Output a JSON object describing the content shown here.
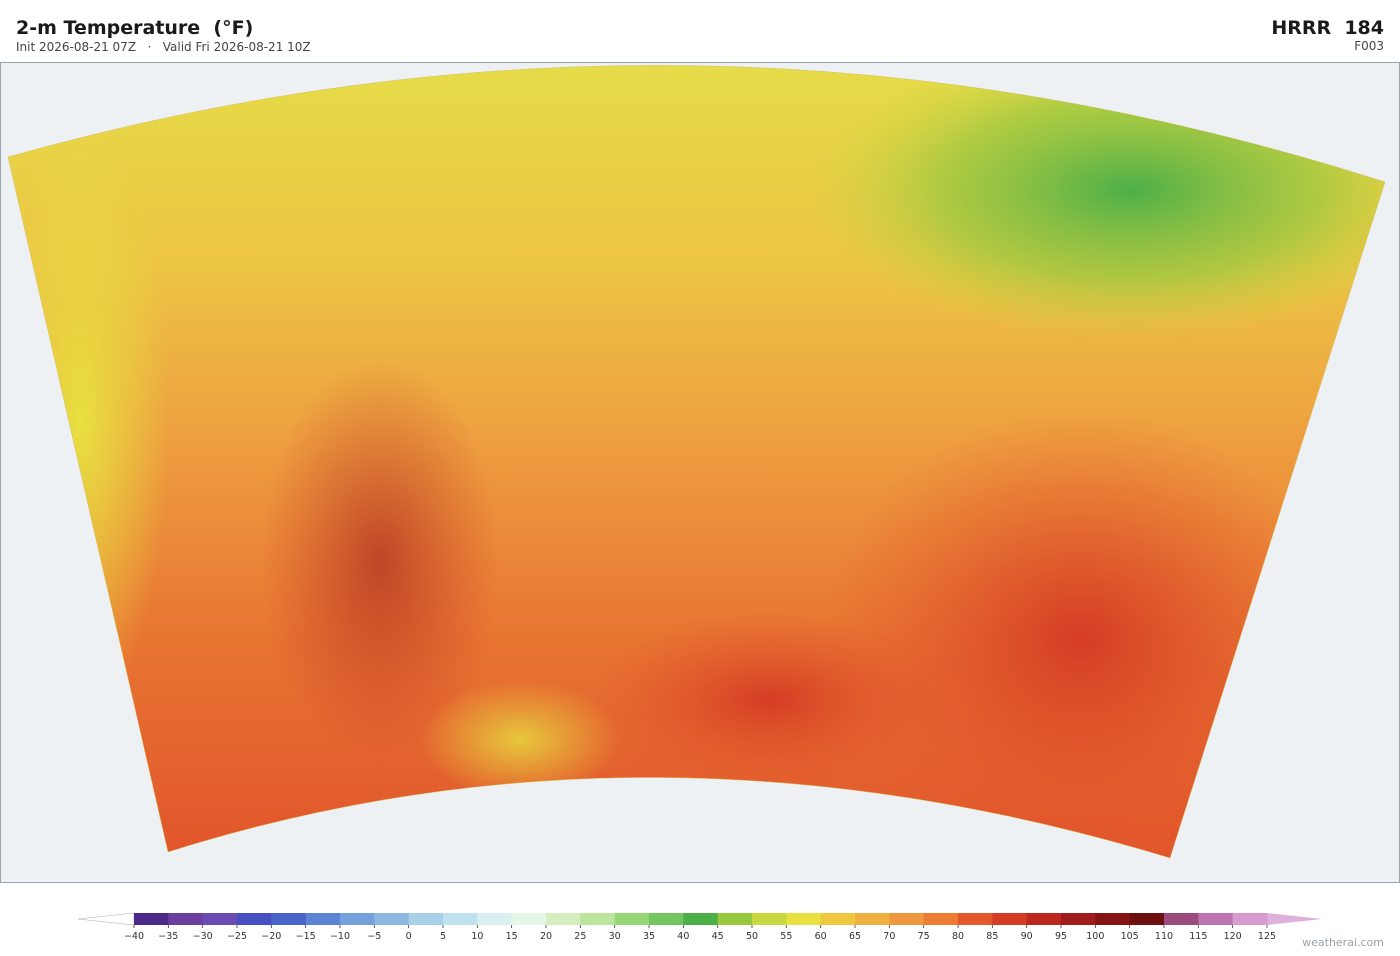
{
  "header": {
    "title": "2-m Temperature  (°F)",
    "subtitle": "Init 2026-08-21 07Z   ·   Valid Fri 2026-08-21 10Z",
    "model": "HRRR  184",
    "forecast_hour": "F003"
  },
  "colorbar": {
    "ticks": [
      {
        "value": -40,
        "label": "−40"
      },
      {
        "value": -35,
        "label": "−35"
      },
      {
        "value": -30,
        "label": "−30"
      },
      {
        "value": -25,
        "label": "−25"
      },
      {
        "value": -20,
        "label": "−20"
      },
      {
        "value": -15,
        "label": "−15"
      },
      {
        "value": -10,
        "label": "−10"
      },
      {
        "value": -5,
        "label": "−5"
      },
      0,
      5,
      10,
      15,
      20,
      25,
      30,
      35,
      40,
      45,
      50,
      55,
      60,
      65,
      70,
      75,
      80,
      85,
      90,
      95,
      100,
      105,
      110,
      115,
      120,
      125
    ],
    "colors": [
      "#4b2a8a",
      "#6a3fa0",
      "#6b4cb4",
      "#4650c0",
      "#4a63c8",
      "#5b84d4",
      "#74a0dc",
      "#8fb8e0",
      "#a8d0e8",
      "#c0e2ef",
      "#d8f0f0",
      "#e6f6e6",
      "#d4eec0",
      "#bce49c",
      "#98d67a",
      "#74c460",
      "#4caf48",
      "#98c840",
      "#c8d840",
      "#e8e040",
      "#f0c840",
      "#f0b040",
      "#f09840",
      "#ec7c34",
      "#e4582c",
      "#d43c24",
      "#bc2820",
      "#a01c1c",
      "#861414",
      "#6e1010",
      "#9c4c7c",
      "#bc74b0",
      "#d89cd0"
    ],
    "under_color": "#ffffff",
    "over_color": "#e0b0dc"
  },
  "watermark": "weatherai.com"
}
